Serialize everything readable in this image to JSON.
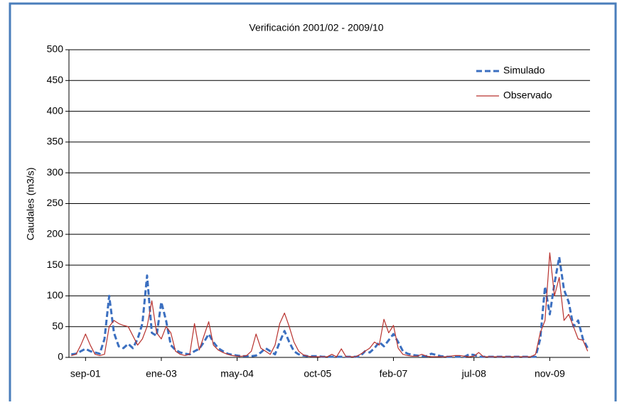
{
  "chart_data": {
    "type": "line",
    "title": "Verificación 2001/02 - 2009/10",
    "y_label": "Caudales (m3/s)",
    "categories": [
      null,
      null,
      null,
      "sep-01",
      null,
      null,
      null,
      null,
      null,
      null,
      null,
      null,
      null,
      null,
      null,
      null,
      null,
      null,
      null,
      "ene-03",
      null,
      null,
      null,
      null,
      null,
      null,
      null,
      null,
      null,
      null,
      null,
      null,
      null,
      null,
      null,
      "may-04",
      null,
      null,
      null,
      null,
      null,
      null,
      null,
      null,
      null,
      null,
      null,
      null,
      null,
      null,
      null,
      null,
      "oct-05",
      null,
      null,
      null,
      null,
      null,
      null,
      null,
      null,
      null,
      null,
      null,
      null,
      null,
      null,
      null,
      "feb-07",
      null,
      null,
      null,
      null,
      null,
      null,
      null,
      null,
      null,
      null,
      null,
      null,
      null,
      null,
      null,
      null,
      "jul-08",
      null,
      null,
      null,
      null,
      null,
      null,
      null,
      null,
      null,
      null,
      null,
      null,
      null,
      null,
      null,
      "nov-09",
      null,
      null,
      null,
      null,
      null,
      null,
      null,
      null
    ],
    "series": [
      {
        "name": "Simulado",
        "color": "#3b6fc0",
        "line_style": "dashed",
        "values": [
          5,
          6,
          10,
          14,
          10,
          8,
          6,
          30,
          100,
          40,
          18,
          15,
          22,
          15,
          30,
          55,
          133,
          40,
          35,
          90,
          60,
          20,
          12,
          8,
          6,
          5,
          10,
          14,
          25,
          38,
          25,
          15,
          10,
          6,
          4,
          3,
          2,
          2,
          2,
          3,
          8,
          15,
          10,
          5,
          25,
          43,
          25,
          10,
          5,
          3,
          2,
          2,
          2,
          1,
          1,
          1,
          1,
          1,
          1,
          1,
          1,
          2,
          10,
          8,
          15,
          25,
          18,
          28,
          38,
          25,
          10,
          6,
          4,
          3,
          2,
          2,
          6,
          4,
          2,
          1,
          1,
          1,
          1,
          1,
          5,
          4,
          1,
          1,
          1,
          1,
          1,
          1,
          1,
          1,
          1,
          1,
          1,
          1,
          1,
          30,
          115,
          70,
          120,
          163,
          110,
          90,
          50,
          60,
          30,
          15
        ]
      },
      {
        "name": "Observado",
        "color": "#b8322e",
        "line_style": "solid",
        "values": [
          3,
          5,
          20,
          38,
          20,
          5,
          3,
          5,
          50,
          60,
          55,
          52,
          50,
          35,
          20,
          30,
          50,
          92,
          40,
          30,
          50,
          40,
          10,
          5,
          3,
          5,
          55,
          12,
          35,
          58,
          20,
          12,
          8,
          5,
          3,
          2,
          2,
          3,
          10,
          38,
          15,
          10,
          5,
          20,
          55,
          72,
          50,
          25,
          10,
          4,
          2,
          1,
          1,
          1,
          1,
          5,
          1,
          14,
          1,
          1,
          1,
          5,
          10,
          15,
          25,
          20,
          62,
          40,
          52,
          15,
          5,
          3,
          2,
          2,
          5,
          2,
          1,
          1,
          1,
          1,
          2,
          3,
          3,
          2,
          1,
          2,
          8,
          1,
          1,
          1,
          1,
          1,
          1,
          1,
          1,
          1,
          1,
          1,
          5,
          40,
          60,
          170,
          100,
          130,
          60,
          70,
          50,
          30,
          28,
          10
        ]
      }
    ],
    "ylim": [
      0,
      500
    ],
    "yticks": [
      0,
      50,
      100,
      150,
      200,
      250,
      300,
      350,
      400,
      450,
      500
    ],
    "grid": true,
    "legend": "upper right"
  }
}
